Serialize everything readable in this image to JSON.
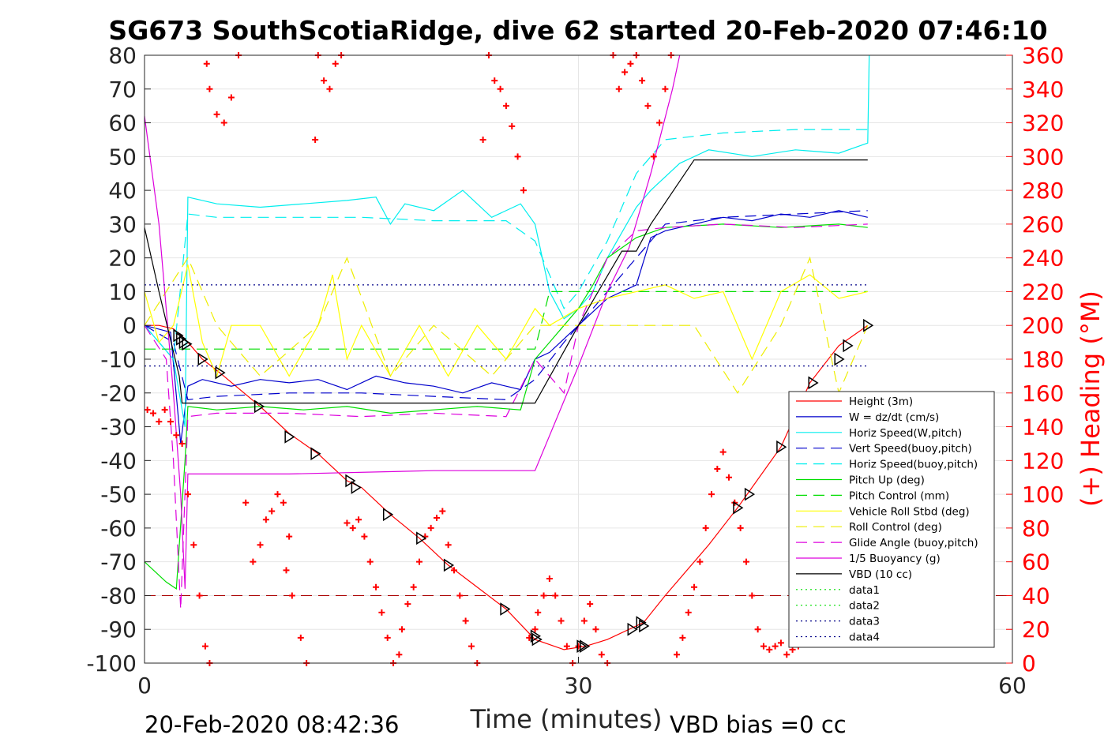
{
  "chart_data": {
    "type": "line",
    "title": "SG673 SouthScotiaRidge, dive 62 started 20-Feb-2020 07:46:10",
    "xlabel": "Time (minutes)",
    "ylabel_right": "(+) Heading (°M)",
    "xlim": [
      0,
      60
    ],
    "ylim_left": [
      -100,
      80
    ],
    "ylim_right": [
      0,
      360
    ],
    "xticks": [
      "0",
      "30",
      "60"
    ],
    "yticks_left": [
      "80",
      "70",
      "60",
      "50",
      "40",
      "30",
      "20",
      "10",
      "0",
      "-10",
      "-20",
      "-30",
      "-40",
      "-50",
      "-60",
      "-70",
      "-80",
      "-90",
      "-100"
    ],
    "yticks_right": [
      "360",
      "340",
      "320",
      "300",
      "280",
      "260",
      "240",
      "220",
      "200",
      "180",
      "160",
      "140",
      "120",
      "100",
      "80",
      "60",
      "40",
      "20",
      "0"
    ],
    "footer_left": "20-Feb-2020 08:42:36",
    "footer_right": "VBD bias =0 cc",
    "grid": true,
    "legend_position": "bottom-right",
    "colors": {
      "height": "#ff0000",
      "w": "#0000cc",
      "horiz_w": "#00eeee",
      "vert_buoy": "#0000cc",
      "horiz_buoy": "#00eeee",
      "pitch": "#00dd00",
      "pitch_ctrl": "#00dd00",
      "roll": "#ffff00",
      "roll_ctrl": "#eeee00",
      "glide": "#dd00dd",
      "buoyancy": "#dd00dd",
      "vbd": "#000000",
      "heading": "#ff0000",
      "data3": "#000088"
    },
    "series": [
      {
        "key": "height",
        "name": "Height (3m)",
        "style": "solid",
        "color": "#ff0000",
        "x": [
          0,
          1,
          2,
          2.8,
          4,
          5.2,
          8,
          10,
          12,
          14,
          15,
          17,
          19,
          21,
          25,
          27,
          29,
          30.5,
          32,
          34.5,
          36,
          39,
          41,
          44,
          46,
          48,
          50
        ],
        "y": [
          0,
          0,
          -1,
          -4,
          -10,
          -14,
          -24,
          -32,
          -38,
          -46,
          -48,
          -56,
          -63,
          -71,
          -84,
          -93,
          -96,
          -95,
          -93,
          -88,
          -80,
          -65,
          -54,
          -36,
          -17,
          -6,
          0
        ]
      },
      {
        "key": "w",
        "name": "W = dz/dt (cm/s)",
        "style": "solid",
        "color": "#0000cc",
        "x": [
          0,
          1.8,
          2.5,
          3,
          4,
          6,
          8,
          10,
          12,
          14,
          16,
          18,
          20,
          22,
          24,
          26,
          27,
          28,
          29,
          30,
          31,
          32,
          34,
          35,
          36,
          38,
          40,
          42,
          44,
          46,
          48,
          50
        ],
        "y": [
          0,
          -2,
          -35,
          -18,
          -16,
          -18,
          -16,
          -17,
          -16,
          -19,
          -15,
          -17,
          -18,
          -20,
          -17,
          -19,
          -10,
          -8,
          -4,
          0,
          4,
          8,
          12,
          26,
          28,
          30,
          32,
          31,
          33,
          32,
          34,
          32
        ]
      },
      {
        "key": "horiz_w",
        "name": "Horiz Speed(W,pitch)",
        "style": "solid",
        "color": "#00eeee",
        "x": [
          0,
          2,
          2.8,
          3,
          5,
          8,
          11,
          14,
          16,
          17,
          18,
          20,
          22,
          24,
          26,
          27,
          28,
          29,
          30,
          31,
          32,
          34,
          35,
          37,
          39,
          42,
          45,
          48,
          50,
          50.1
        ],
        "y": [
          0,
          -10,
          -30,
          38,
          36,
          35,
          36,
          37,
          38,
          30,
          36,
          34,
          40,
          32,
          36,
          30,
          10,
          2,
          5,
          10,
          20,
          35,
          40,
          48,
          52,
          50,
          52,
          51,
          54,
          80
        ]
      },
      {
        "key": "vert_buoy",
        "name": "Vert Speed(buoy,pitch)",
        "style": "dashed",
        "color": "#0000cc",
        "x": [
          0,
          2,
          3,
          5,
          10,
          15,
          20,
          25,
          27,
          29,
          30,
          32,
          34,
          36,
          40,
          45,
          50
        ],
        "y": [
          0,
          -5,
          -22,
          -21,
          -20,
          -20,
          -21,
          -22,
          -16,
          -5,
          0,
          10,
          20,
          30,
          32,
          33,
          34
        ]
      },
      {
        "key": "horiz_buoy",
        "name": "Horiz Speed(buoy,pitch)",
        "style": "dashed",
        "color": "#00eeee",
        "x": [
          0,
          2,
          3,
          5,
          10,
          15,
          20,
          25,
          27,
          29,
          30,
          32,
          34,
          36,
          40,
          45,
          50
        ],
        "y": [
          0,
          -10,
          33,
          32,
          32,
          32,
          31,
          31,
          25,
          5,
          10,
          25,
          45,
          55,
          57,
          58,
          58
        ]
      },
      {
        "key": "pitch",
        "name": "Pitch Up (deg)",
        "style": "solid",
        "color": "#00dd00",
        "x": [
          0,
          1.5,
          2.2,
          2.8,
          3,
          5,
          8,
          11,
          14,
          17,
          20,
          23,
          26,
          27,
          28,
          29,
          30,
          31,
          32,
          34,
          36,
          40,
          44,
          48,
          50
        ],
        "y": [
          -70,
          -76,
          -78,
          -40,
          -24,
          -25,
          -24,
          -25,
          -24,
          -26,
          -25,
          -24,
          -25,
          -10,
          -5,
          0,
          5,
          12,
          20,
          26,
          29,
          30,
          29,
          30,
          29
        ]
      },
      {
        "key": "pitch_ctrl",
        "name": "Pitch Control (mm)",
        "style": "dashed",
        "color": "#00dd00",
        "x": [
          0,
          2.5,
          3,
          27,
          28,
          34,
          35,
          50
        ],
        "y": [
          -7,
          -7,
          -7,
          -7,
          10,
          10,
          10,
          10
        ]
      },
      {
        "key": "roll",
        "name": "Vehicle Roll Stbd (deg)",
        "style": "solid",
        "color": "#ffff00",
        "x": [
          0,
          1,
          2,
          3,
          4,
          5,
          6,
          8,
          10,
          12,
          13,
          14,
          15,
          17,
          19,
          21,
          23,
          25,
          27,
          28,
          30,
          32,
          34,
          36,
          38,
          40,
          42,
          44,
          46,
          48,
          50
        ],
        "y": [
          10,
          -5,
          0,
          18,
          -5,
          -15,
          0,
          0,
          -15,
          0,
          15,
          -10,
          0,
          -15,
          0,
          -15,
          0,
          -10,
          5,
          0,
          5,
          8,
          10,
          12,
          8,
          10,
          -10,
          10,
          15,
          8,
          10
        ]
      },
      {
        "key": "roll_ctrl",
        "name": "Roll Control (deg)",
        "style": "dashed",
        "color": "#eeee00",
        "x": [
          0,
          3,
          5,
          8,
          12,
          14,
          17,
          20,
          24,
          27,
          30,
          34,
          38,
          41,
          44,
          46,
          48,
          50
        ],
        "y": [
          0,
          20,
          0,
          -15,
          0,
          20,
          -15,
          0,
          -15,
          0,
          0,
          0,
          0,
          -20,
          0,
          20,
          -20,
          0
        ]
      },
      {
        "key": "glide",
        "name": "Glide Angle (buoy,pitch)",
        "style": "dashed",
        "color": "#dd00dd",
        "x": [
          0,
          1.5,
          2,
          2.5,
          3,
          5,
          10,
          15,
          20,
          25,
          27,
          28,
          29,
          30,
          31,
          32,
          34,
          36,
          40,
          45,
          50
        ],
        "y": [
          0,
          -10,
          -40,
          -84,
          -27,
          -26,
          -26,
          -27,
          -26,
          -27,
          -10,
          -15,
          -20,
          0,
          10,
          20,
          28,
          29,
          30,
          29,
          30
        ]
      },
      {
        "key": "buoyancy",
        "name": "1/5 Buoyancy (g)",
        "style": "solid",
        "color": "#dd00dd",
        "x": [
          0,
          1,
          2,
          2.5,
          2.8,
          3,
          10,
          20,
          27,
          30,
          32,
          33.5,
          35,
          36.5,
          37
        ],
        "y": [
          62,
          30,
          -20,
          -50,
          -78,
          -44,
          -44,
          -43,
          -43,
          -12,
          10,
          23,
          45,
          70,
          80
        ]
      },
      {
        "key": "vbd",
        "name": "VBD (10 cc)",
        "style": "solid",
        "color": "#000000",
        "x": [
          0,
          1,
          2.4,
          2.6,
          27,
          30,
          33,
          34,
          35,
          38,
          40,
          50
        ],
        "y": [
          29,
          10,
          -15,
          -23,
          -23,
          0,
          22,
          22,
          30,
          49,
          49,
          49
        ]
      },
      {
        "key": "data1",
        "name": "data1",
        "style": "dotted",
        "color": "#00dd00",
        "x": [],
        "y": []
      },
      {
        "key": "data2",
        "name": "data2",
        "style": "dotted",
        "color": "#00dd00",
        "x": [],
        "y": []
      },
      {
        "key": "data3",
        "name": "data3",
        "style": "dotted",
        "color": "#000088",
        "x": [
          0,
          50
        ],
        "y": [
          12,
          12
        ]
      },
      {
        "key": "data4",
        "name": "data4",
        "style": "dotted",
        "color": "#000088",
        "x": [
          0,
          50
        ],
        "y": [
          -12,
          -12
        ]
      }
    ],
    "reference_lines": [
      {
        "axis": "left",
        "value": -80,
        "style": "dashed",
        "color": "#aa0000"
      }
    ],
    "vbd_markers": {
      "x": [
        2.3,
        2.5,
        2.7,
        2.9,
        4,
        5.2,
        7.9,
        10,
        11.8,
        14.2,
        14.6,
        16.8,
        19.1,
        21,
        24.9,
        27,
        27.1,
        30.2,
        30.4,
        33.7,
        34.3,
        34.5,
        41,
        41.8,
        44,
        46.2,
        48,
        48.6,
        50
      ],
      "y": [
        -3,
        -4,
        -5,
        -5.5,
        -10,
        -14,
        -24,
        -33,
        -38,
        -46,
        -48,
        -56,
        -63,
        -71,
        -84,
        -92,
        -93,
        -95,
        -95,
        -90,
        -88,
        -89,
        -54,
        -50,
        -36,
        -17,
        -10,
        -6,
        0
      ]
    },
    "heading": {
      "name": "(+) Heading (°M)",
      "x": [
        0.2,
        0.6,
        1.0,
        1.4,
        1.8,
        2.2,
        2.6,
        3.0,
        3.4,
        3.8,
        4.2,
        4.5,
        4.3,
        4.5,
        5.0,
        5.5,
        6.0,
        6.5,
        7.0,
        7.5,
        8.0,
        8.4,
        8.8,
        9.2,
        9.6,
        10.0,
        9.8,
        10.2,
        10.8,
        11.2,
        11.8,
        12.0,
        12.4,
        12.8,
        13.2,
        13.6,
        14.0,
        14.4,
        14.8,
        15.2,
        15.6,
        16.0,
        16.4,
        16.8,
        17.2,
        17.6,
        17.8,
        18.2,
        18.6,
        19.0,
        19.4,
        19.8,
        20.2,
        20.6,
        21.0,
        21.4,
        21.8,
        22.2,
        22.6,
        23.0,
        23.4,
        23.8,
        24.2,
        24.6,
        25.0,
        25.4,
        25.8,
        26.2,
        26.6,
        27.0,
        27.2,
        27.6,
        28.0,
        28.4,
        28.8,
        29.2,
        29.6,
        30.0,
        30.4,
        30.8,
        31.2,
        31.6,
        32.0,
        32.4,
        32.8,
        33.2,
        33.6,
        34.0,
        34.4,
        34.8,
        35.2,
        35.6,
        36.0,
        36.4,
        36.8,
        37.2,
        37.6,
        38.0,
        38.4,
        38.8,
        39.2,
        39.6,
        40.0,
        40.4,
        40.8,
        41.2,
        41.6,
        42.0,
        42.4,
        42.8,
        43.2,
        43.6,
        44.0,
        44.4,
        44.8,
        45.2,
        45.6,
        46.0
      ],
      "y": [
        150,
        148,
        143,
        150,
        143,
        135,
        130,
        100,
        70,
        40,
        10,
        0,
        355,
        340,
        325,
        320,
        335,
        360,
        95,
        60,
        70,
        85,
        90,
        100,
        95,
        75,
        55,
        40,
        15,
        0,
        310,
        360,
        345,
        340,
        355,
        360,
        83,
        80,
        85,
        75,
        60,
        45,
        30,
        15,
        0,
        5,
        20,
        35,
        45,
        60,
        75,
        80,
        86,
        90,
        70,
        55,
        40,
        25,
        10,
        0,
        310,
        360,
        345,
        340,
        330,
        318,
        300,
        280,
        15,
        20,
        30,
        40,
        50,
        40,
        25,
        10,
        0,
        10,
        25,
        35,
        20,
        5,
        0,
        360,
        340,
        350,
        355,
        360,
        345,
        330,
        300,
        320,
        340,
        360,
        5,
        15,
        30,
        45,
        60,
        80,
        100,
        115,
        125,
        110,
        95,
        80,
        60,
        40,
        20,
        10,
        8,
        10,
        12,
        5,
        8,
        10,
        15,
        20
      ]
    }
  }
}
